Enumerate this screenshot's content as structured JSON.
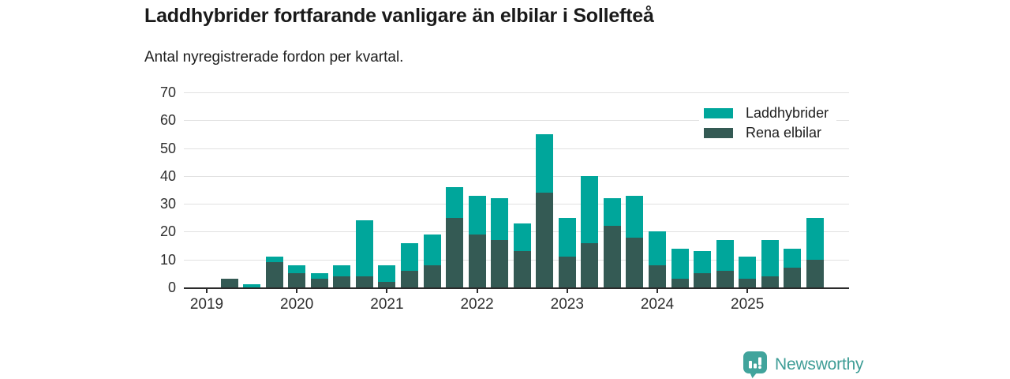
{
  "header": {
    "title": "Laddhybrider fortfarande vanligare än elbilar i Sollefteå",
    "subtitle": "Antal nyregistrerade fordon per kvartal."
  },
  "chart_data": {
    "type": "bar",
    "stacked": true,
    "x": [
      "2019Q1",
      "2019Q2",
      "2019Q3",
      "2019Q4",
      "2020Q1",
      "2020Q2",
      "2020Q3",
      "2020Q4",
      "2021Q1",
      "2021Q2",
      "2021Q3",
      "2021Q4",
      "2022Q1",
      "2022Q2",
      "2022Q3",
      "2022Q4",
      "2023Q1",
      "2023Q2",
      "2023Q3",
      "2023Q4",
      "2024Q1",
      "2024Q2",
      "2024Q3",
      "2024Q4",
      "2025Q1",
      "2025Q2",
      "2025Q3",
      "2025Q4"
    ],
    "series": [
      {
        "name": "Laddhybrider",
        "color": "#00a69b",
        "values": [
          0,
          0,
          1,
          2,
          3,
          2,
          4,
          20,
          6,
          10,
          11,
          11,
          14,
          15,
          10,
          21,
          14,
          24,
          10,
          15,
          12,
          11,
          8,
          11,
          8,
          13,
          7,
          15
        ]
      },
      {
        "name": "Rena elbilar",
        "color": "#345a54",
        "values": [
          0,
          3,
          0,
          9,
          5,
          3,
          4,
          4,
          2,
          6,
          8,
          25,
          19,
          17,
          13,
          34,
          11,
          16,
          22,
          18,
          8,
          3,
          5,
          6,
          3,
          4,
          7,
          10
        ]
      }
    ],
    "stack_order_bottom_to_top": [
      "Rena elbilar",
      "Laddhybrider"
    ],
    "ylim": [
      0,
      70
    ],
    "yticks": [
      0,
      10,
      20,
      30,
      40,
      50,
      60,
      70
    ],
    "year_ticks": [
      {
        "label": "2019",
        "slot": 0
      },
      {
        "label": "2020",
        "slot": 4
      },
      {
        "label": "2021",
        "slot": 8
      },
      {
        "label": "2022",
        "slot": 12
      },
      {
        "label": "2023",
        "slot": 16
      },
      {
        "label": "2024",
        "slot": 20
      },
      {
        "label": "2025",
        "slot": 24
      }
    ],
    "grid": "horizontal",
    "legend_position": "top-right",
    "colors": {
      "grid": "#e1e1e1",
      "axis": "#2b2b2b",
      "tick_label": "#2e2e2e"
    }
  },
  "footer": {
    "brand": "Newsworthy",
    "logo_icon": "bar-chart-pin-icon",
    "brand_color": "#3e9d96",
    "badge_color": "#41a49c"
  }
}
